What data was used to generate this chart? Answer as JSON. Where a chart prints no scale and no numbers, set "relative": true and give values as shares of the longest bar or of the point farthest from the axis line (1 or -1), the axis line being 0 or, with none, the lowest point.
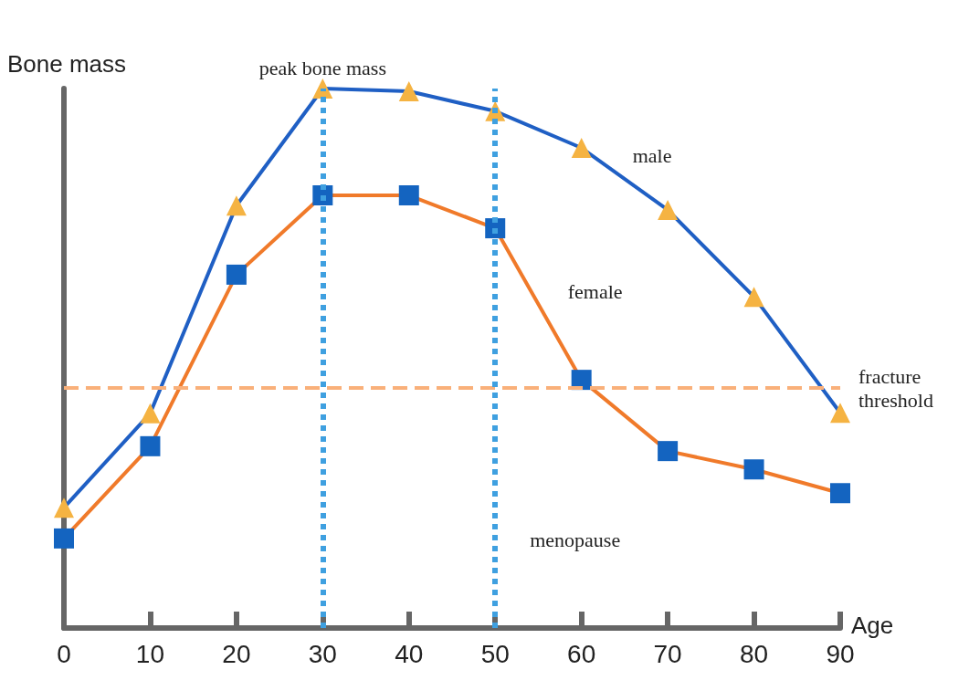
{
  "chart_data": {
    "type": "line",
    "relative": true,
    "xlabel": "Age",
    "ylabel": "Bone mass",
    "x": [
      0,
      10,
      20,
      30,
      40,
      50,
      60,
      70,
      80,
      90
    ],
    "xlim": [
      0,
      90
    ],
    "xticks": [
      0,
      10,
      20,
      30,
      40,
      50,
      60,
      70,
      80,
      90
    ],
    "grid": false,
    "legend": false,
    "tick_labels": "x",
    "series": [
      {
        "name": "male",
        "color": "#1f5fc4",
        "marker": "triangle",
        "colors": [
          "#f5b342",
          "#f5b342",
          "#f5b342",
          "#f5b342",
          "#f5b342",
          "#f5b342",
          "#f5b342",
          "#f5b342",
          "#f5b342",
          "#f5b342"
        ],
        "values": [
          0.223,
          0.398,
          0.783,
          1.0,
          0.995,
          0.958,
          0.89,
          0.775,
          0.614,
          0.399
        ]
      },
      {
        "name": "female",
        "color": "#f07a2a",
        "marker": "square",
        "colors": [
          "#1464c0",
          "#1464c0",
          "#1464c0",
          "#1464c0",
          "#1464c0",
          "#1464c0",
          "#1464c0",
          "#1464c0",
          "#1464c0",
          "#1464c0"
        ],
        "values": [
          0.166,
          0.337,
          0.655,
          0.802,
          0.802,
          0.741,
          0.46,
          0.328,
          0.294,
          0.25
        ]
      }
    ],
    "ref_lines": [
      {
        "axis": "y",
        "value": 0.445,
        "label": "fracture threshold",
        "color": "#f9b07a",
        "line_style": "dashed"
      },
      {
        "axis": "x",
        "value": 30,
        "label": "peak bone mass",
        "color": "#3fa0e0",
        "line_style": "dotted"
      },
      {
        "axis": "x",
        "value": 50,
        "label": "menopause",
        "color": "#3fa0e0",
        "line_style": "dotted"
      }
    ]
  }
}
